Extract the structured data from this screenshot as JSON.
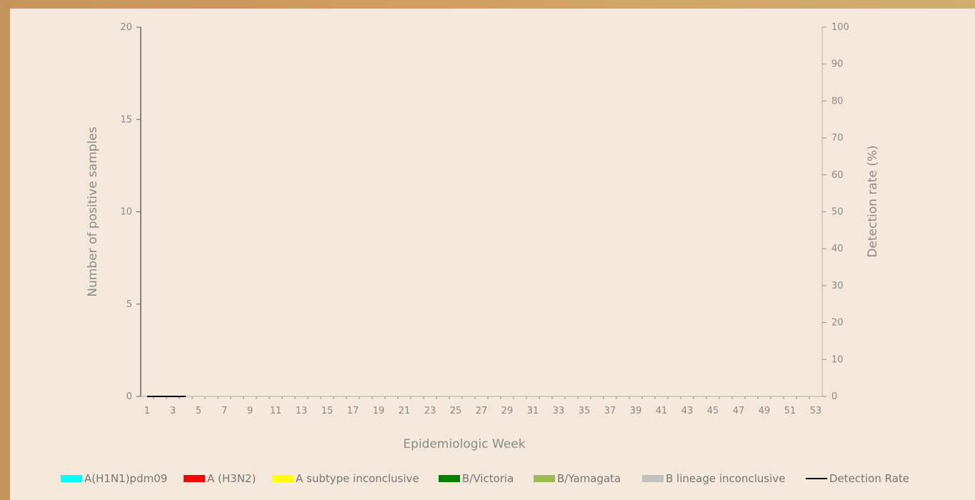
{
  "chart_data": {
    "type": "bar",
    "subtype": "stacked-bar-with-line",
    "title": "",
    "xlabel": "Epidemiologic Week",
    "ylabel": "Number of positive samples",
    "y2label": "Detection rate (%)",
    "ylim": [
      0,
      20
    ],
    "y2lim": [
      0,
      100
    ],
    "y_ticks": [
      0,
      5,
      10,
      15,
      20
    ],
    "y2_ticks": [
      0,
      10,
      20,
      30,
      40,
      50,
      60,
      70,
      80,
      90,
      100
    ],
    "x_tick_labels": [
      "1",
      "3",
      "5",
      "7",
      "9",
      "11",
      "13",
      "15",
      "17",
      "19",
      "21",
      "23",
      "25",
      "27",
      "29",
      "31",
      "33",
      "35",
      "37",
      "39",
      "41",
      "43",
      "45",
      "47",
      "49",
      "51",
      "53"
    ],
    "x_min": 1,
    "x_max": 53,
    "grid": false,
    "legend_position": "bottom",
    "series": [
      {
        "name": "A(H1N1)pdm09",
        "kind": "bar",
        "color": "#00ffff",
        "x": [
          1,
          2,
          3,
          4
        ],
        "values": [
          0,
          0,
          0,
          0
        ]
      },
      {
        "name": "A (H3N2)",
        "kind": "bar",
        "color": "#ff0000",
        "x": [
          1,
          2,
          3,
          4
        ],
        "values": [
          0,
          0,
          0,
          0
        ]
      },
      {
        "name": "A subtype inconclusive",
        "kind": "bar",
        "color": "#ffff00",
        "x": [
          1,
          2,
          3,
          4
        ],
        "values": [
          0,
          0,
          0,
          0
        ]
      },
      {
        "name": "B/Victoria",
        "kind": "bar",
        "color": "#008000",
        "x": [
          1,
          2,
          3,
          4
        ],
        "values": [
          0,
          0,
          0,
          0
        ]
      },
      {
        "name": "B/Yamagata",
        "kind": "bar",
        "color": "#9bbb59",
        "x": [
          1,
          2,
          3,
          4
        ],
        "values": [
          0,
          0,
          0,
          0
        ]
      },
      {
        "name": "B lineage inconclusive",
        "kind": "bar",
        "color": "#c0c0c0",
        "x": [
          1,
          2,
          3,
          4
        ],
        "values": [
          0,
          0,
          0,
          0
        ]
      },
      {
        "name": "Detection Rate",
        "kind": "line",
        "axis": "right",
        "color": "#000000",
        "x": [
          1,
          2,
          3,
          4
        ],
        "values": [
          0,
          0,
          0,
          0
        ]
      }
    ]
  }
}
